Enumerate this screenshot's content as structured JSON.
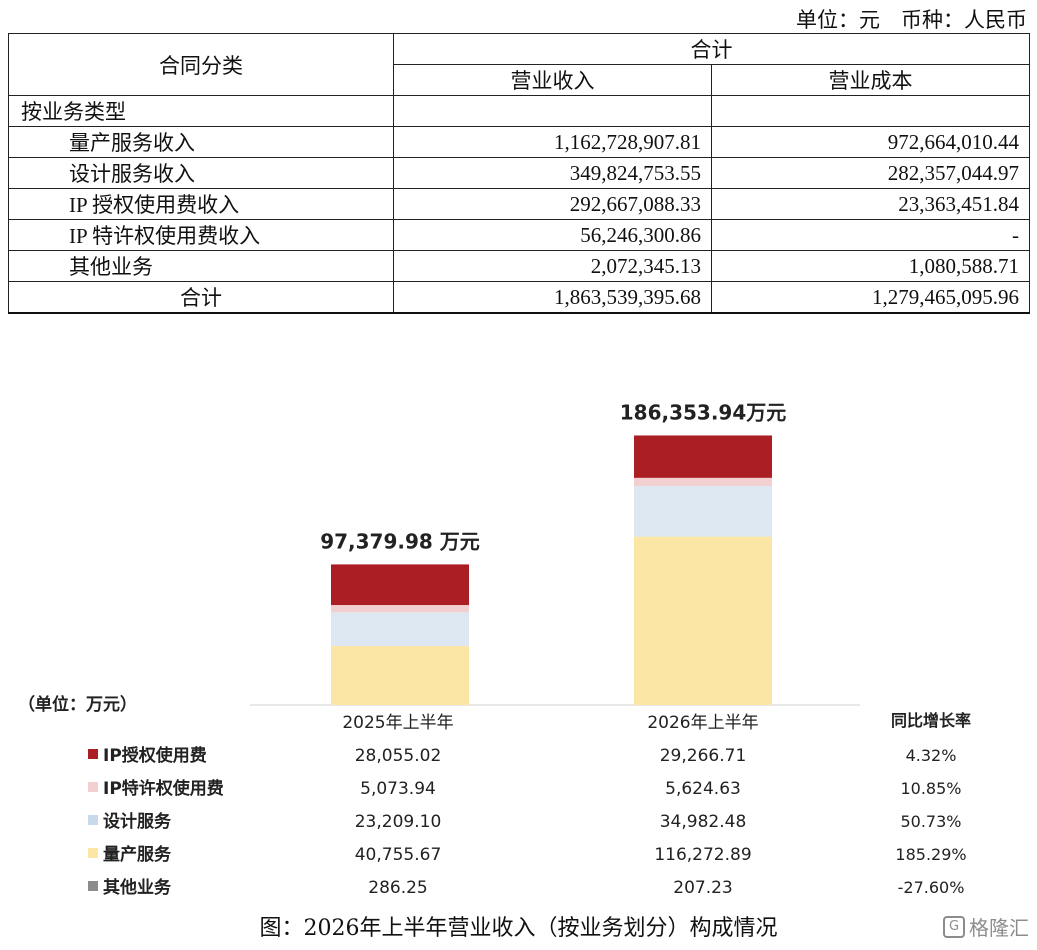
{
  "header": {
    "unit_text": "单位：元　币种：人民币"
  },
  "table": {
    "col_main": "合同分类",
    "col_group": "合计",
    "col_revenue": "营业收入",
    "col_cost": "营业成本",
    "section": "按业务类型",
    "rows": [
      {
        "name": "量产服务收入",
        "revenue": "1,162,728,907.81",
        "cost": "972,664,010.44"
      },
      {
        "name": "设计服务收入",
        "revenue": "349,824,753.55",
        "cost": "282,357,044.97"
      },
      {
        "name": "IP 授权使用费收入",
        "revenue": "292,667,088.33",
        "cost": "23,363,451.84"
      },
      {
        "name": "IP 特许权使用费收入",
        "revenue": "56,246,300.86",
        "cost": "-"
      },
      {
        "name": "其他业务",
        "revenue": "2,072,345.13",
        "cost": "1,080,588.71"
      }
    ],
    "total": {
      "name": "合计",
      "revenue": "1,863,539,395.68",
      "cost": "1,279,465,095.96"
    }
  },
  "chart_data": {
    "type": "bar",
    "stacked": true,
    "unit_label": "（单位：万元）",
    "categories": [
      "2025年上半年",
      "2026年上半年"
    ],
    "totals": [
      "97,379.98 万元",
      "186,353.94万元"
    ],
    "total_values": [
      97379.98,
      186353.94
    ],
    "growth_header": "同比增长率",
    "series": [
      {
        "name": "IP授权使用费",
        "color": "#ab1f24",
        "values": [
          28055.02,
          29266.71
        ],
        "labels": [
          "28,055.02",
          "29,266.71"
        ],
        "growth": "4.32%"
      },
      {
        "name": "IP特许权使用费",
        "color": "#f2cfd0",
        "values": [
          5073.94,
          5624.63
        ],
        "labels": [
          "5,073.94",
          "5,624.63"
        ],
        "growth": "10.85%"
      },
      {
        "name": "设计服务",
        "color": "#dde8f3",
        "values": [
          23209.1,
          34982.48
        ],
        "labels": [
          "23,209.10",
          "34,982.48"
        ],
        "growth": "50.73%"
      },
      {
        "name": "量产服务",
        "color": "#fbe6a5",
        "values": [
          40755.67,
          116272.89
        ],
        "labels": [
          "40,755.67",
          "116,272.89"
        ],
        "growth": "185.29%"
      },
      {
        "name": "其他业务",
        "color": "#8c8c8c",
        "values": [
          286.25,
          207.23
        ],
        "labels": [
          "286.25",
          "207.23"
        ],
        "growth": "-27.60%"
      }
    ]
  },
  "caption": "图：2026年上半年营业收入（按业务划分）构成情况",
  "watermark": {
    "logo": "G",
    "text": "格隆汇"
  }
}
